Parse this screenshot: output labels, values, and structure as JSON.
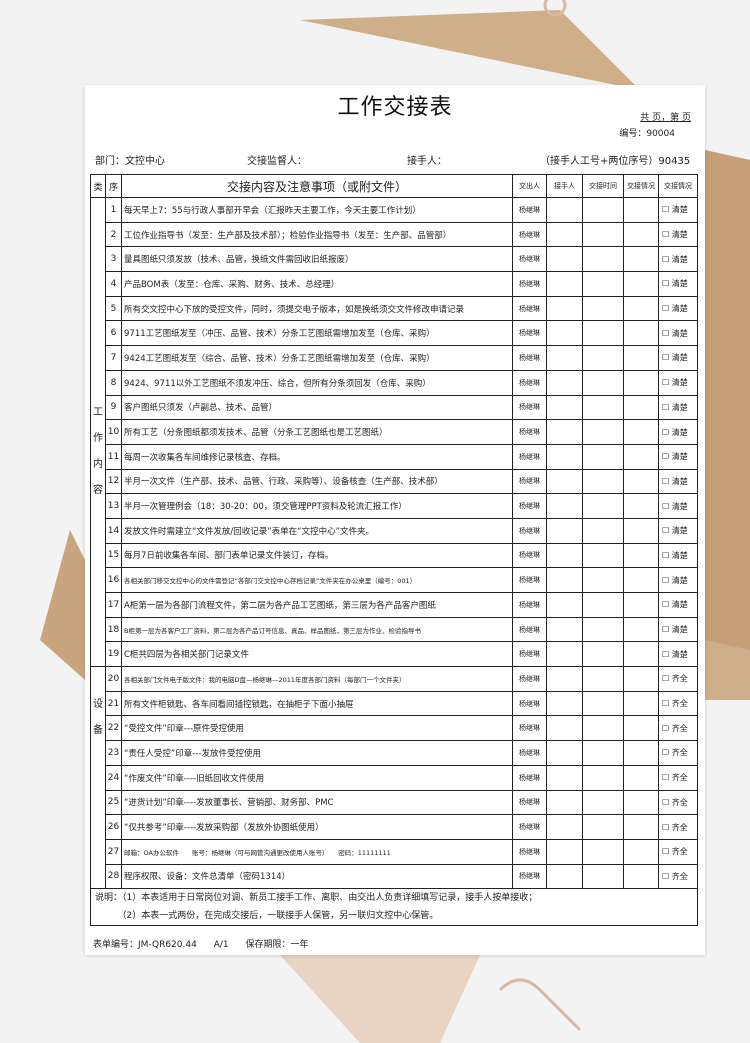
{
  "title": "工作交接表",
  "pages": "共 页，第 页",
  "serial": "编号：90004",
  "department": "部门：文控中心",
  "supervisor": "交接监督人：",
  "receiver": "接手人：",
  "receiver_id": "（接手人工号+两位序号）90435",
  "headers": {
    "category": "类",
    "seq": "序",
    "content": "交接内容及注意事项（或附文件）",
    "giver": "交出人",
    "receiver": "接手人",
    "time": "交接时间",
    "status1": "交接情况",
    "status2": "交接情况"
  },
  "categories": {
    "work": "工作内容",
    "equipment": "设备"
  },
  "rows": [
    {
      "seq": "1",
      "content": "每天早上7：55与行政人事部开早会（汇报昨天主要工作，今天主要工作计划）",
      "giver": "杨继琳",
      "status": "☐ 清楚"
    },
    {
      "seq": "2",
      "content": "工位作业指导书（发至：生产部及技术部）；检验作业指导书（发至：生产部、品管部）",
      "giver": "杨继琳",
      "status": "☐ 清楚"
    },
    {
      "seq": "3",
      "content": "量具图纸只须发放（技术、品管，换纸文件需回收旧纸报废）",
      "giver": "杨继琳",
      "status": "☐ 清楚"
    },
    {
      "seq": "4",
      "content": "产品BOM表（发至：仓库、采购、财务、技术、总经理）",
      "giver": "杨继琳",
      "status": "☐ 清楚"
    },
    {
      "seq": "5",
      "content": "所有交文控中心下放的受控文件，同时，须提交电子版本，如是换纸须交文件修改申请记录",
      "giver": "杨继琳",
      "status": "☐ 清楚"
    },
    {
      "seq": "6",
      "content": "9711工艺图纸发至（冲压、品管、技术）分条工艺图纸需增加发至（仓库、采购）",
      "giver": "杨继琳",
      "status": "☐ 清楚"
    },
    {
      "seq": "7",
      "content": "9424工艺图纸发至（综合、品管、技术）分条工艺图纸需增加发至（仓库、采购）",
      "giver": "杨继琳",
      "status": "☐ 清楚"
    },
    {
      "seq": "8",
      "content": "9424、9711以外工艺图纸不须发冲压、综合，但所有分条须回发（仓库、采购）",
      "giver": "杨继琳",
      "status": "☐ 清楚"
    },
    {
      "seq": "9",
      "content": "客户图纸只须发（卢副总、技术、品管）",
      "giver": "杨继琳",
      "status": "☐ 清楚"
    },
    {
      "seq": "10",
      "content": "所有工艺（分条图纸都须发技术、品管（分条工艺图纸也是工艺图纸）",
      "giver": "杨继琳",
      "status": "☐ 清楚"
    },
    {
      "seq": "11",
      "content": "每周一次收集各车间维修记录核查、存档。",
      "giver": "杨继琳",
      "status": "☐ 清楚"
    },
    {
      "seq": "12",
      "content": "半月一次文件（生产部、技术、品管、行政、采购等）、设备核查（生产部、技术部）",
      "giver": "杨继琳",
      "status": "☐ 清楚"
    },
    {
      "seq": "13",
      "content": "半月一次管理例会（18：30-20：00，须交管理PPT资料及轮流汇报工作）",
      "giver": "杨继琳",
      "status": "☐ 清楚"
    },
    {
      "seq": "14",
      "content": "发放文件时需建立“文件发放/回收记录”表单在“文控中心”文件夹。",
      "giver": "杨继琳",
      "status": "☐ 清楚"
    },
    {
      "seq": "15",
      "content": "每月7日前收集各车间、部门表单记录文件装订，存档。",
      "giver": "杨继琳",
      "status": "☐ 清楚"
    },
    {
      "seq": "16",
      "content": "各相关部门移交文控中心的文件需登记“各部门交文控中心存档记录”文件夹在办公桌里（编号：001）",
      "giver": "杨继琳",
      "status": "☐ 清楚",
      "small": true
    },
    {
      "seq": "17",
      "content": "A柜第一层为各部门流程文件，第二层为各产品工艺图纸，第三层为各产品客户图纸",
      "giver": "杨继琳",
      "status": "☐ 清楚"
    },
    {
      "seq": "18",
      "content": "B柜第一层为各客户工厂资料，第二层为各产品订号信息、真品、样品图纸，第三层为作业、检验指导书",
      "giver": "杨继琳",
      "status": "☐ 清楚",
      "small": true
    },
    {
      "seq": "19",
      "content": "C柜共四层为各相关部门记录文件",
      "giver": "杨继琳",
      "status": "☐ 清楚"
    },
    {
      "seq": "20",
      "content": "各相关部门文件电子版文件：我的电脑D盘—杨继琳—2011年度各部门资料（每部门一个文件夹）",
      "giver": "杨继琳",
      "status": "☐ 齐全",
      "small": true
    },
    {
      "seq": "21",
      "content": "所有文件柜锁匙、各车间看间插控锁匙，在抽柜子下面小抽屉",
      "giver": "杨继琳",
      "status": "☐ 齐全"
    },
    {
      "seq": "22",
      "content": "“受控文件”印章---原件受控使用",
      "giver": "杨继琳",
      "status": "☐ 齐全"
    },
    {
      "seq": "23",
      "content": "“责任人受控”印章---发放件受控使用",
      "giver": "杨继琳",
      "status": "☐ 齐全"
    },
    {
      "seq": "24",
      "content": "“作废文件”印章----旧纸回收文件使用",
      "giver": "杨继琳",
      "status": "☐ 齐全"
    },
    {
      "seq": "25",
      "content": "“进货计划”印章----发放董事长、营销部、财务部、PMC",
      "giver": "杨继琳",
      "status": "☐ 齐全"
    },
    {
      "seq": "26",
      "content": "“仅共参考”印章----发放采购部（发放外协图纸使用）",
      "giver": "杨继琳",
      "status": "☐ 齐全"
    },
    {
      "seq": "27",
      "content": "邮箱：OA办公软件　　账号：杨继琳（可与网管沟通更改使用人账号）　　密码：11111111",
      "giver": "杨继琳",
      "status": "☐ 齐全",
      "small": true
    },
    {
      "seq": "28",
      "content": "程序权限、设备：文件总清单（密码1314）",
      "giver": "杨继琳",
      "status": "☐ 齐全"
    }
  ],
  "notes": {
    "line1": "说明：（1）本表适用于日常岗位对调、新员工接手工作、离职、由交出人负责详细填写记录，接手人按单接收；",
    "line2": "　　　（2）本表一式两份，在完成交接后，一联接手人保管，另一联归文控中心保管。"
  },
  "footer": {
    "form_no": "表单编号：JM-QR620.44",
    "version": "A/1",
    "retention": "保存期限：一年"
  },
  "colors": {
    "envelope": "#c9a57f",
    "paper": "#ffffff",
    "background": "#f3f3f3"
  }
}
